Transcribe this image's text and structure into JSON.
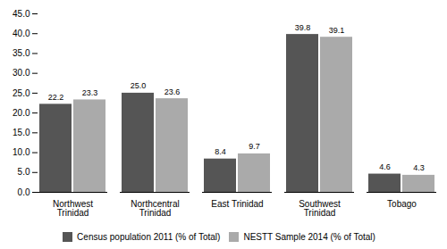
{
  "chart_data": {
    "type": "bar",
    "categories": [
      "Northwest\nTrinidad",
      "Northcentral\nTrinidad",
      "East Trinidad",
      "Southwest\nTrinidad",
      "Tobago"
    ],
    "series": [
      {
        "name": "Census population 2011 (% of Total)",
        "color": "#555555",
        "values": [
          22.2,
          25.0,
          8.4,
          39.8,
          4.6
        ],
        "value_labels": [
          "22.2",
          "25.0",
          "8.4",
          "39.8",
          "4.6"
        ]
      },
      {
        "name": "NESTT Sample 2014 (% of Total)",
        "color": "#aaaaaa",
        "values": [
          23.3,
          23.6,
          9.7,
          39.1,
          4.3
        ],
        "value_labels": [
          "23.3",
          "23.6",
          "9.7",
          "39.1",
          "4.3"
        ]
      }
    ],
    "ylim": [
      0,
      45
    ],
    "yticks": [
      {
        "value": 0,
        "label": "0.0"
      },
      {
        "value": 5,
        "label": "5.0"
      },
      {
        "value": 10,
        "label": "10.0"
      },
      {
        "value": 15,
        "label": "15.0"
      },
      {
        "value": 20,
        "label": "20.0"
      },
      {
        "value": 25,
        "label": "25.0"
      },
      {
        "value": 30,
        "label": "30.0"
      },
      {
        "value": 35,
        "label": "35.0"
      },
      {
        "value": 40,
        "label": "40.0"
      },
      {
        "value": 45,
        "label": "45.0"
      }
    ],
    "grid": false,
    "legend": "bottom",
    "data_labels": true
  }
}
